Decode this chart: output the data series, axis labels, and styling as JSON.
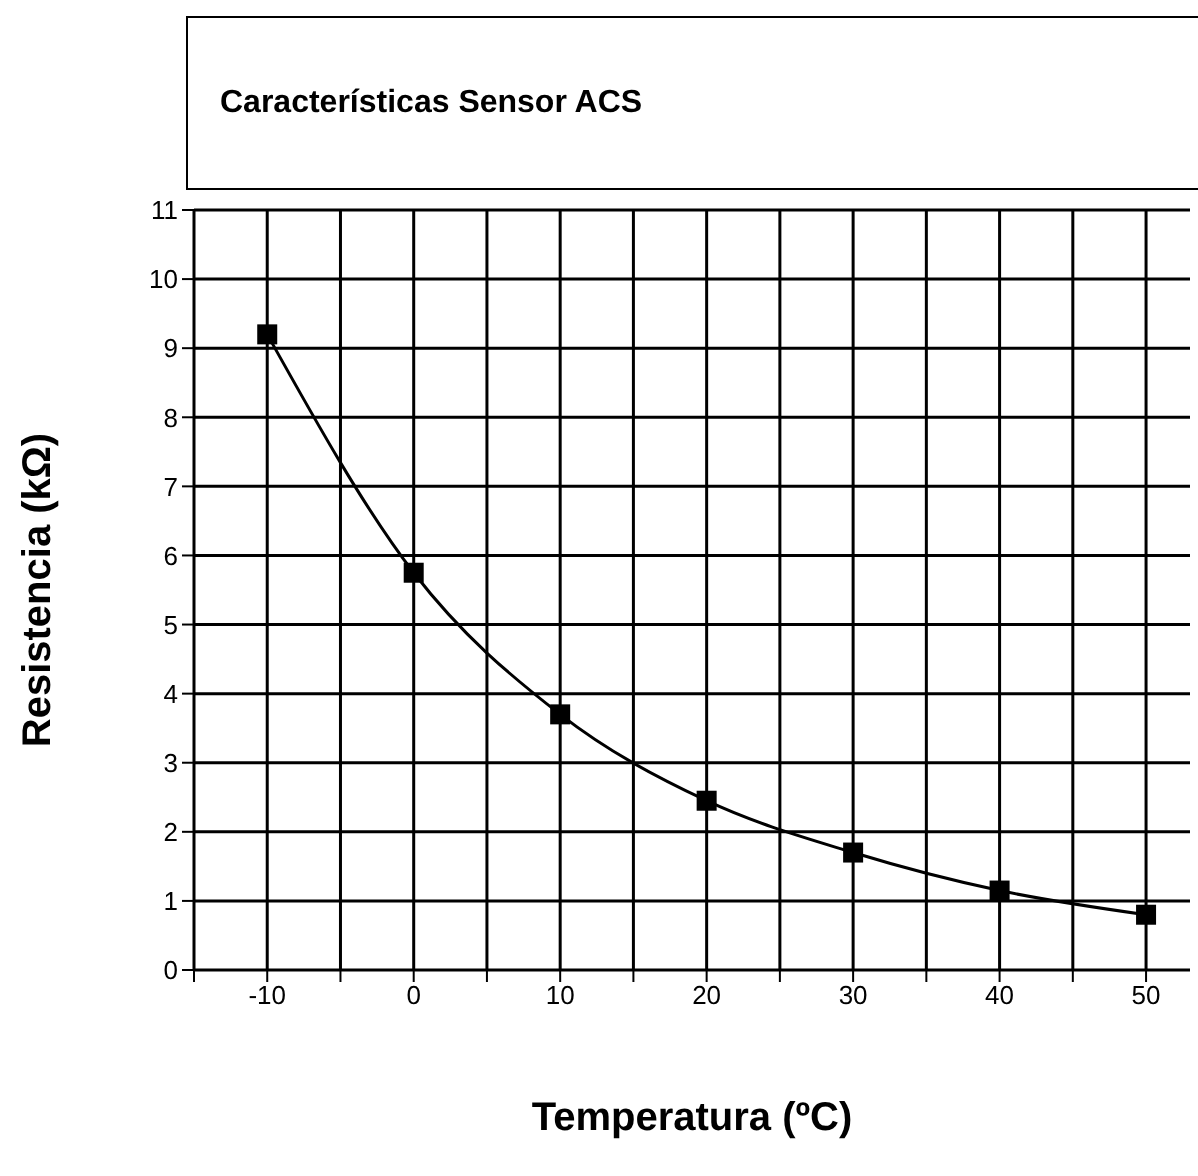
{
  "chart_data": {
    "type": "line",
    "title": "Características Sensor ACS",
    "xlabel": "Temperatura (ºC)",
    "ylabel": "Resistencia (kΩ)",
    "x": [
      -10,
      0,
      10,
      20,
      30,
      40,
      50
    ],
    "series": [
      {
        "color": "#000000",
        "values": [
          9.2,
          5.75,
          3.7,
          2.45,
          1.7,
          1.15,
          0.8
        ]
      }
    ],
    "xlim": [
      -15,
      53
    ],
    "xticks": [
      {
        "value": -15,
        "label": null
      },
      -10,
      {
        "value": -5,
        "label": null
      },
      0,
      {
        "value": 5,
        "label": null
      },
      10,
      {
        "value": 15,
        "label": null
      },
      20,
      {
        "value": 25,
        "label": null
      },
      30,
      {
        "value": 35,
        "label": null
      },
      40,
      {
        "value": 45,
        "label": null
      },
      50
    ],
    "ylim": [
      0,
      11
    ],
    "yticks": [
      0,
      1,
      2,
      3,
      4,
      5,
      6,
      7,
      8,
      9,
      10,
      11
    ],
    "grid": true,
    "marker": "square",
    "line_style": "solid",
    "legend": false
  }
}
